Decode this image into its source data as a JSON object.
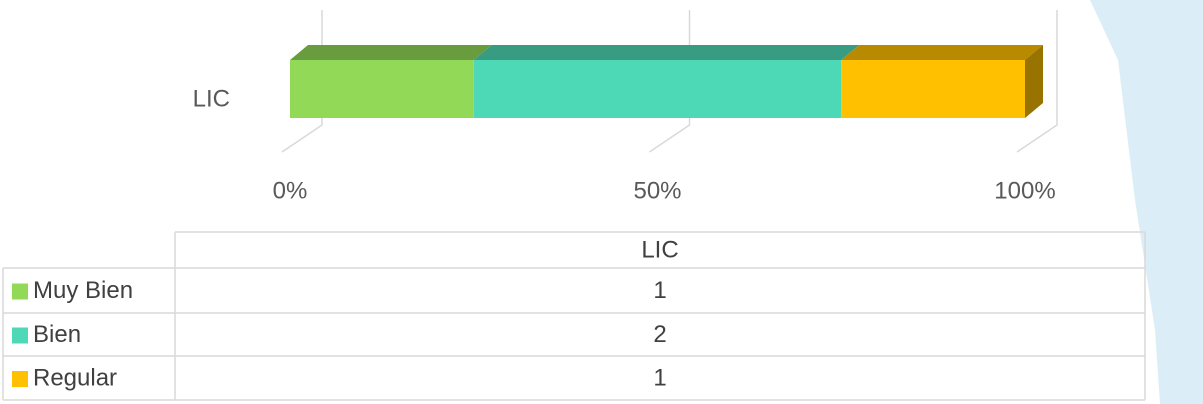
{
  "chart_data": {
    "type": "bar",
    "orientation": "horizontal",
    "stacking": "percent",
    "categories": [
      "LIC"
    ],
    "series": [
      {
        "name": "Muy Bien",
        "color": "#92d957",
        "values": [
          1
        ]
      },
      {
        "name": "Bien",
        "color": "#4dd9b5",
        "values": [
          2
        ]
      },
      {
        "name": "Regular",
        "color": "#ffc000",
        "values": [
          1
        ]
      }
    ],
    "xlim": [
      0,
      100
    ],
    "xticks": [
      {
        "value": 0,
        "label": "0%"
      },
      {
        "value": 50,
        "label": "50%"
      },
      {
        "value": 100,
        "label": "100%"
      }
    ],
    "grid": true,
    "data_table": true
  }
}
